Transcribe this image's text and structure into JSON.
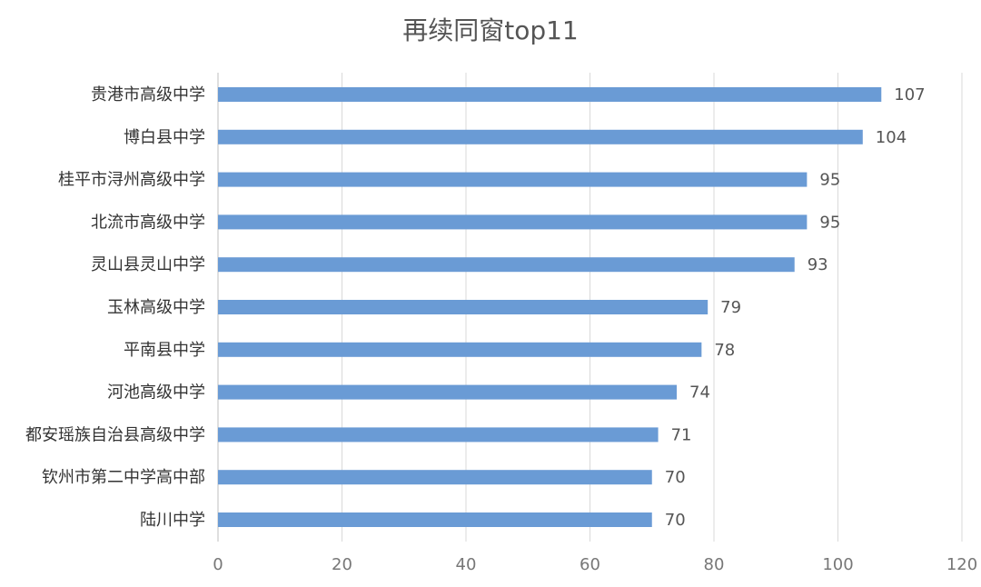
{
  "chart_data": {
    "type": "bar",
    "orientation": "horizontal",
    "title": "再续同窗top11",
    "xlabel": "",
    "ylabel": "",
    "xlim": [
      0,
      120
    ],
    "ticks": [
      0,
      20,
      40,
      60,
      80,
      100,
      120
    ],
    "grid": true,
    "bar_color": "#6a9bd5",
    "categories": [
      "贵港市高级中学",
      "博白县中学",
      "桂平市浔州高级中学",
      "北流市高级中学",
      "灵山县灵山中学",
      "玉林高级中学",
      "平南县中学",
      "河池高级中学",
      "都安瑶族自治县高级中学",
      "钦州市第二中学高中部",
      "陆川中学"
    ],
    "values": [
      107,
      104,
      95,
      95,
      93,
      79,
      78,
      74,
      71,
      70,
      70
    ]
  }
}
